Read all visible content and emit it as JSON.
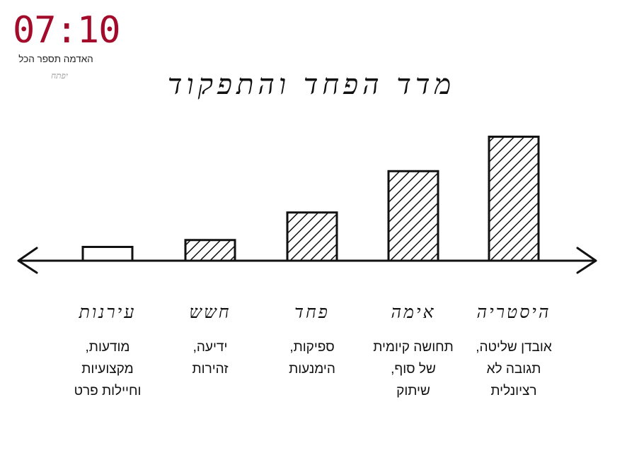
{
  "logo": {
    "clock_text": "07:10",
    "tagline": "האדמה תספר הכל",
    "signature": "יפתח"
  },
  "chart_data": {
    "type": "bar",
    "title": "מדד הפחד והתפקוד",
    "categories": [
      "עירנות",
      "חשש",
      "פחד",
      "אימה",
      "היסטריה"
    ],
    "descriptions": [
      [
        "מודעות,",
        "מקצועיות",
        "וחיילות פרט"
      ],
      [
        "ידיעה,",
        "זהירות"
      ],
      [
        "ספיקות,",
        "הימנעות"
      ],
      [
        "תחושה קיומית",
        "של סוף,",
        "שיתוק"
      ],
      [
        "אובדן שליטה,",
        "תגובה לא",
        "רציונלית"
      ]
    ],
    "values": [
      1,
      1.5,
      3.5,
      6.5,
      9
    ],
    "fill": [
      "none",
      "hatched",
      "hatched",
      "hatched",
      "hatched"
    ],
    "axis": "horizontal line with arrows at both ends",
    "grid": false,
    "legend": "none"
  }
}
